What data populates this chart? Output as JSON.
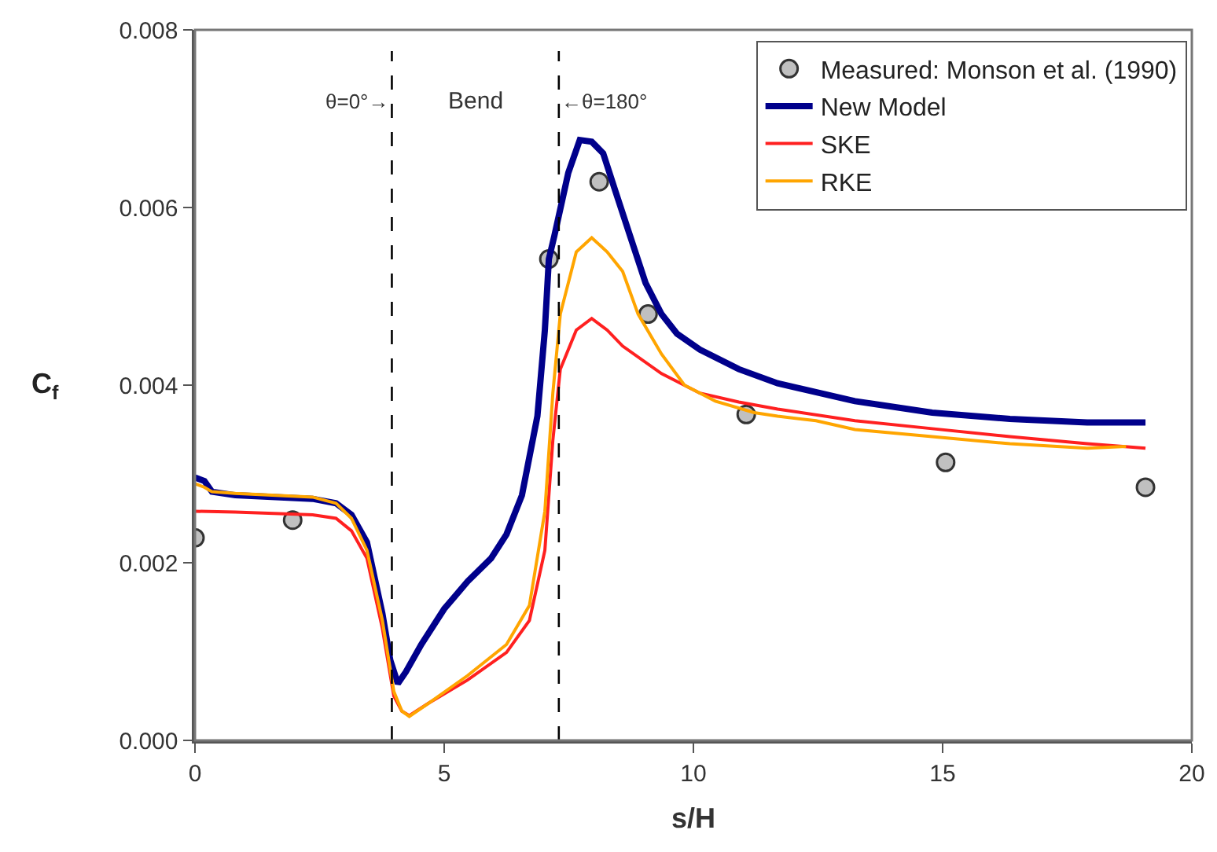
{
  "chart_data": {
    "type": "line",
    "xlabel": "s/H",
    "ylabel": "C$_{f}$",
    "xlim": [
      0,
      20
    ],
    "xticks": [
      0,
      5,
      10,
      15,
      20
    ],
    "ylim": [
      0,
      0.008
    ],
    "yticks": [
      {
        "value": 0,
        "label": "0.000"
      },
      {
        "value": 0.002,
        "label": "0.002"
      },
      {
        "value": 0.004,
        "label": "0.004"
      },
      {
        "value": 0.006,
        "label": "0.006"
      },
      {
        "value": 0.008,
        "label": "0.008"
      }
    ],
    "grid": false,
    "legend": "top right",
    "line_style": "solid",
    "series": [
      {
        "name": "Measured: Monson et al. (1990)",
        "type": "scatter",
        "marker": "circle",
        "color": "#c0c0c0",
        "x": [
          0,
          1.96,
          7.1,
          8.11,
          9.09,
          11.06,
          15.06,
          19.07
        ],
        "values": [
          0.00228,
          0.00248,
          0.00542,
          0.00629,
          0.0048,
          0.00367,
          0.00313,
          0.00285
        ]
      },
      {
        "name": "New Model",
        "type": "line",
        "color": "#00008b",
        "x": [
          0,
          0.19,
          0.34,
          0.81,
          2.36,
          2.83,
          3.14,
          3.45,
          3.76,
          3.92,
          4.07,
          4.23,
          4.54,
          5.0,
          5.47,
          5.94,
          6.25,
          6.56,
          6.87,
          7.02,
          7.1,
          7.21,
          7.49,
          7.72,
          7.96,
          8.19,
          8.42,
          8.73,
          9.04,
          9.36,
          9.67,
          10.13,
          10.91,
          11.69,
          13.24,
          14.79,
          16.35,
          17.9,
          19.07
        ],
        "values": [
          0.00296,
          0.00292,
          0.0028,
          0.00276,
          0.00272,
          0.00267,
          0.00254,
          0.00223,
          0.00143,
          0.0009,
          0.00064,
          0.00077,
          0.00108,
          0.00148,
          0.00179,
          0.00205,
          0.00232,
          0.00276,
          0.00365,
          0.00462,
          0.00542,
          0.00568,
          0.00639,
          0.00676,
          0.00674,
          0.00661,
          0.00621,
          0.00568,
          0.00515,
          0.0048,
          0.00458,
          0.0044,
          0.00418,
          0.00402,
          0.00382,
          0.00369,
          0.00362,
          0.00358,
          0.00358
        ]
      },
      {
        "name": "SKE",
        "type": "line",
        "color": "#ff2020",
        "x": [
          0,
          0.81,
          2.36,
          2.83,
          3.14,
          3.45,
          3.76,
          3.99,
          4.15,
          4.3,
          4.69,
          5.47,
          6.25,
          6.71,
          7.02,
          7.18,
          7.33,
          7.65,
          7.96,
          8.27,
          8.58,
          9.36,
          10.13,
          10.91,
          11.69,
          13.24,
          14.79,
          16.35,
          17.9,
          19.07
        ],
        "values": [
          0.00258,
          0.00257,
          0.00254,
          0.0025,
          0.00236,
          0.00205,
          0.00126,
          0.0005,
          0.00033,
          0.00028,
          0.00042,
          0.00068,
          0.00099,
          0.00135,
          0.00214,
          0.00338,
          0.00418,
          0.00462,
          0.00475,
          0.00462,
          0.00444,
          0.00413,
          0.00391,
          0.00381,
          0.00373,
          0.0036,
          0.00351,
          0.00342,
          0.00334,
          0.00329
        ]
      },
      {
        "name": "RKE",
        "type": "line",
        "color": "#ffa500",
        "x": [
          0,
          0.19,
          0.34,
          0.81,
          2.36,
          2.83,
          3.14,
          3.45,
          3.76,
          3.99,
          4.15,
          4.3,
          4.69,
          5.47,
          6.25,
          6.71,
          7.02,
          7.18,
          7.33,
          7.65,
          7.96,
          8.27,
          8.58,
          8.89,
          9.36,
          9.82,
          10.44,
          11.22,
          11.69,
          12.46,
          13.24,
          14.79,
          16.35,
          17.9,
          18.68
        ],
        "values": [
          0.00289,
          0.00285,
          0.0028,
          0.00278,
          0.00274,
          0.00267,
          0.0025,
          0.00214,
          0.00135,
          0.00055,
          0.00033,
          0.00027,
          0.00042,
          0.00073,
          0.00108,
          0.00152,
          0.00258,
          0.00391,
          0.0048,
          0.0055,
          0.00566,
          0.0055,
          0.00528,
          0.0048,
          0.00435,
          0.004,
          0.00382,
          0.00369,
          0.00365,
          0.0036,
          0.0035,
          0.00342,
          0.00334,
          0.00329,
          0.00331
        ]
      }
    ],
    "ref_lines": [
      {
        "axis": "x",
        "value": 3.95,
        "color": "#000000",
        "line_style": "dashed"
      },
      {
        "axis": "x",
        "value": 7.3,
        "color": "#000000",
        "line_style": "dashed"
      }
    ],
    "annotations": [
      "θ=0°→",
      "Bend",
      "←θ=180°"
    ]
  }
}
